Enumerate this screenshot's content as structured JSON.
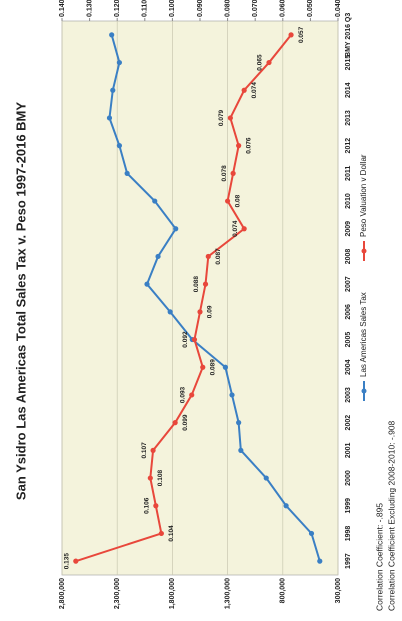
{
  "chart_data": {
    "type": "line",
    "title": "San Ysidro Las Americas Total Sales Tax v. Peso 1997-2016 BMY",
    "categories": [
      "1997",
      "1998",
      "1999",
      "2000",
      "2001",
      "2002",
      "2003",
      "2004",
      "2005",
      "2006",
      "2007",
      "2008",
      "2009",
      "2010",
      "2011",
      "2012",
      "2013",
      "2014",
      "2015",
      "BMY 2016 Q3"
    ],
    "series": [
      {
        "name": "Las Americas Sales Tax",
        "color": "#3a7fc4",
        "axis": "y",
        "values": [
          465000,
          540000,
          770000,
          950000,
          1180000,
          1200000,
          1260000,
          1320000,
          1620000,
          1820000,
          2030000,
          1930000,
          1770000,
          1960000,
          2210000,
          2280000,
          2370000,
          2340000,
          2280000,
          2350000
        ]
      },
      {
        "name": "Peso Valuation v Dollar",
        "color": "#e8473b",
        "axis": "y2",
        "values": [
          0.135,
          0.104,
          0.106,
          0.108,
          0.107,
          0.099,
          0.093,
          0.089,
          0.092,
          0.09,
          0.088,
          0.087,
          0.074,
          0.08,
          0.078,
          0.076,
          0.079,
          0.074,
          0.065,
          0.057
        ]
      }
    ],
    "ylim": [
      300000,
      2800000
    ],
    "yticks": [
      {
        "value": 300000,
        "label": "300,000"
      },
      {
        "value": 800000,
        "label": "800,000"
      },
      {
        "value": 1300000,
        "label": "1,300,000"
      },
      {
        "value": 1800000,
        "label": "1,800,000"
      },
      {
        "value": 2300000,
        "label": "2,300,000"
      },
      {
        "value": 2800000,
        "label": "2,800,000"
      }
    ],
    "y2lim": [
      0.04,
      0.14
    ],
    "y2ticks": [
      {
        "value": 0.04,
        "label": "0.040"
      },
      {
        "value": 0.05,
        "label": "0.050"
      },
      {
        "value": 0.06,
        "label": "0.060"
      },
      {
        "value": 0.07,
        "label": "0.070"
      },
      {
        "value": 0.08,
        "label": "0.080"
      },
      {
        "value": 0.09,
        "label": "0.090"
      },
      {
        "value": 0.1,
        "label": "0.100"
      },
      {
        "value": 0.11,
        "label": "0.110"
      },
      {
        "value": 0.12,
        "label": "0.120"
      },
      {
        "value": 0.13,
        "label": "0.130"
      },
      {
        "value": 0.14,
        "label": "0.140"
      }
    ],
    "annotations": [
      "Correlation Coefficient: -.895",
      "Correlation Coefficient Excluding 2008-2010: -.908"
    ],
    "grid": true,
    "legend": "bottom"
  }
}
